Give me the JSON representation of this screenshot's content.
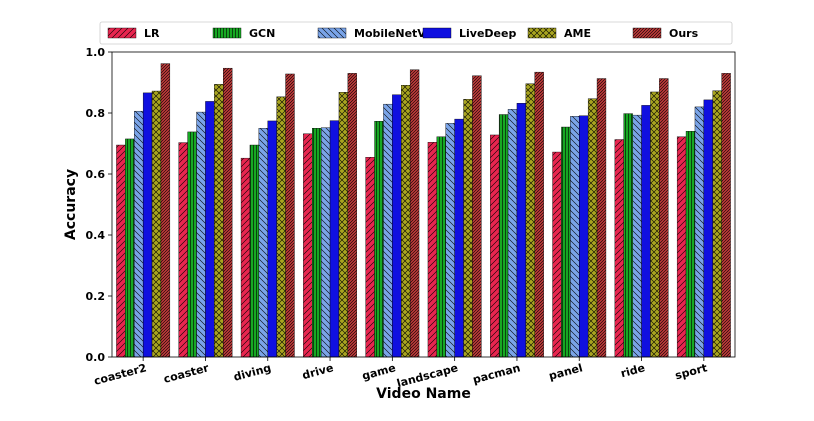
{
  "chart_data": {
    "type": "bar",
    "xlabel": "Video Name",
    "ylabel": "Accuracy",
    "ylim": [
      0,
      1.0
    ],
    "yticks": [
      "0.0",
      "0.2",
      "0.4",
      "0.6",
      "0.8",
      "1.0"
    ],
    "grid": false,
    "legend_position": "top",
    "categories": [
      "coaster2",
      "coaster",
      "diving",
      "drive",
      "game",
      "landscape",
      "pacman",
      "panel",
      "ride",
      "sport"
    ],
    "series": [
      {
        "name": "LR",
        "color": "#e8254f",
        "hatch": "diag-right",
        "values": [
          0.695,
          0.703,
          0.652,
          0.732,
          0.655,
          0.704,
          0.728,
          0.672,
          0.713,
          0.722
        ]
      },
      {
        "name": "GCN",
        "color": "#17a823",
        "hatch": "vertical",
        "values": [
          0.715,
          0.738,
          0.695,
          0.75,
          0.773,
          0.722,
          0.795,
          0.754,
          0.798,
          0.74
        ]
      },
      {
        "name": "MobileNetV2",
        "color": "#7aa4e8",
        "hatch": "diag-left",
        "values": [
          0.806,
          0.803,
          0.75,
          0.752,
          0.829,
          0.766,
          0.812,
          0.789,
          0.793,
          0.82
        ]
      },
      {
        "name": "LiveDeep",
        "color": "#1010e0",
        "hatch": "none",
        "values": [
          0.866,
          0.838,
          0.774,
          0.775,
          0.86,
          0.78,
          0.832,
          0.791,
          0.825,
          0.843
        ]
      },
      {
        "name": "AME",
        "color": "#a8a420",
        "hatch": "cross",
        "values": [
          0.872,
          0.894,
          0.853,
          0.868,
          0.891,
          0.845,
          0.896,
          0.847,
          0.869,
          0.873
        ]
      },
      {
        "name": "Ours",
        "color": "#c03a3a",
        "hatch": "diag-dense",
        "values": [
          0.962,
          0.947,
          0.928,
          0.93,
          0.942,
          0.922,
          0.934,
          0.913,
          0.913,
          0.93
        ]
      }
    ]
  }
}
